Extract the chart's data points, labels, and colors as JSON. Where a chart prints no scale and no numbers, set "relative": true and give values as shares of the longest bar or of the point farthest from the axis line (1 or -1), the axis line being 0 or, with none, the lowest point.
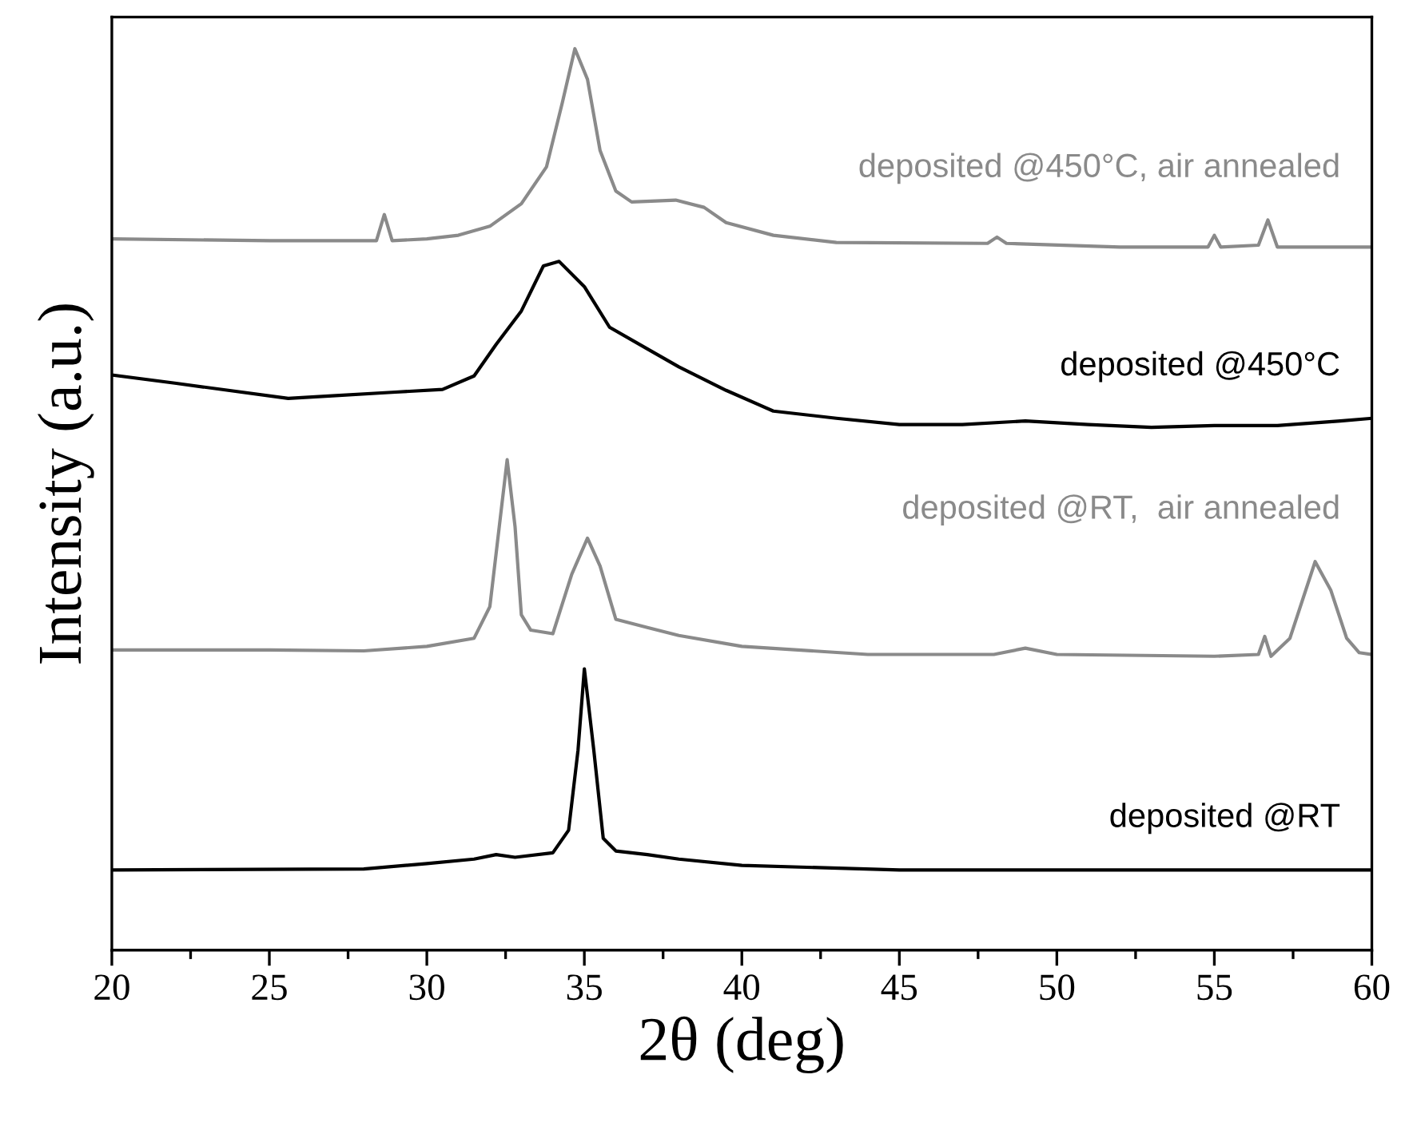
{
  "chart_data": {
    "type": "line",
    "relative": true,
    "xlabel": "2θ (deg)",
    "ylabel": "Intensity (a.u.)",
    "xlim": [
      20,
      60
    ],
    "xticks": [
      20,
      {
        "value": 22.5,
        "label": null
      },
      25,
      {
        "value": 27.5,
        "label": null
      },
      30,
      {
        "value": 32.5,
        "label": null
      },
      35,
      {
        "value": 37.5,
        "label": null
      },
      40,
      {
        "value": 42.5,
        "label": null
      },
      45,
      {
        "value": 47.5,
        "label": null
      },
      50,
      {
        "value": 52.5,
        "label": null
      },
      55,
      {
        "value": 57.5,
        "label": null
      },
      60
    ],
    "grid": false,
    "legend": false,
    "tick_labels": "x",
    "line_style": "solid",
    "marker": "none",
    "series": [
      {
        "name": "deposited @450°C, air annealed",
        "color": "#8a8a8a",
        "x": [
          20,
          25,
          28.4,
          28.65,
          28.9,
          30,
          31,
          32,
          33,
          33.8,
          34.3,
          34.7,
          35.1,
          35.5,
          36,
          36.5,
          37.9,
          38.8,
          39.5,
          41,
          43,
          47.8,
          48.1,
          48.4,
          52,
          54.8,
          55.0,
          55.2,
          56.4,
          56.7,
          57.0,
          60
        ],
        "values": [
          0.789,
          0.787,
          0.787,
          0.816,
          0.787,
          0.789,
          0.793,
          0.803,
          0.828,
          0.869,
          0.94,
          1.0,
          0.966,
          0.887,
          0.842,
          0.83,
          0.832,
          0.824,
          0.807,
          0.793,
          0.785,
          0.784,
          0.791,
          0.784,
          0.78,
          0.78,
          0.793,
          0.78,
          0.782,
          0.81,
          0.78,
          0.78
        ]
      },
      {
        "name": "deposited @450°C",
        "color": "#000000",
        "x": [
          20,
          22,
          25.6,
          27,
          29,
          30.5,
          31.5,
          32.2,
          33,
          33.7,
          34.2,
          35,
          35.8,
          37,
          38,
          39.5,
          41,
          43,
          45,
          47,
          49,
          51,
          53,
          55,
          57,
          59,
          60
        ],
        "values": [
          0.638,
          0.629,
          0.612,
          0.615,
          0.619,
          0.622,
          0.637,
          0.672,
          0.709,
          0.759,
          0.764,
          0.736,
          0.691,
          0.667,
          0.647,
          0.621,
          0.598,
          0.59,
          0.583,
          0.583,
          0.587,
          0.583,
          0.58,
          0.582,
          0.582,
          0.587,
          0.59
        ]
      },
      {
        "name": "deposited @RT,  air annealed",
        "color": "#8a8a8a",
        "x": [
          20,
          25,
          28,
          30,
          31.5,
          32.0,
          32.3,
          32.55,
          32.8,
          33.0,
          33.3,
          34,
          34.6,
          35.1,
          35.5,
          36,
          37,
          38,
          40,
          44,
          48,
          49,
          50,
          55,
          56.4,
          56.6,
          56.8,
          57.4,
          58.2,
          58.7,
          59.2,
          59.6,
          60
        ],
        "values": [
          0.333,
          0.333,
          0.332,
          0.337,
          0.346,
          0.381,
          0.47,
          0.544,
          0.47,
          0.372,
          0.355,
          0.351,
          0.417,
          0.457,
          0.426,
          0.367,
          0.358,
          0.349,
          0.337,
          0.328,
          0.328,
          0.335,
          0.328,
          0.326,
          0.328,
          0.348,
          0.326,
          0.346,
          0.431,
          0.399,
          0.346,
          0.33,
          0.328
        ]
      },
      {
        "name": "deposited @RT",
        "color": "#000000",
        "x": [
          20,
          28,
          30,
          31.5,
          32.2,
          32.8,
          34,
          34.5,
          34.8,
          35.0,
          35.3,
          35.6,
          36,
          37,
          38,
          40,
          45,
          60
        ],
        "values": [
          0.089,
          0.09,
          0.096,
          0.101,
          0.106,
          0.103,
          0.108,
          0.133,
          0.222,
          0.312,
          0.222,
          0.124,
          0.11,
          0.106,
          0.101,
          0.094,
          0.089,
          0.089
        ]
      }
    ]
  }
}
